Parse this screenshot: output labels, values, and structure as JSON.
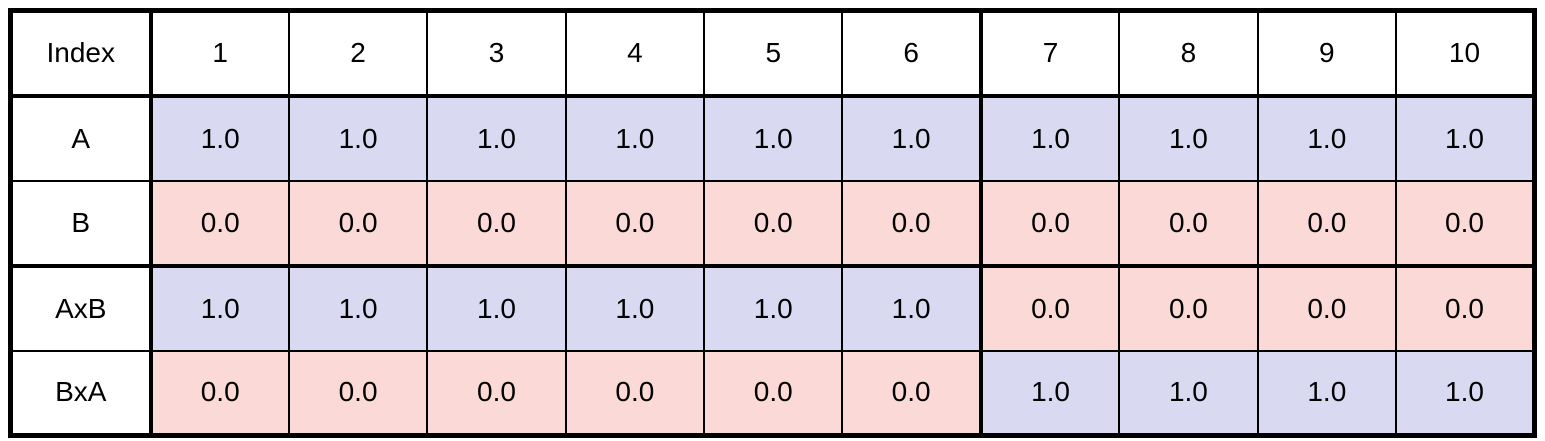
{
  "colors": {
    "page_background": "#ffffff",
    "border": "#000000",
    "text": "#000000",
    "header_background": "#ffffff",
    "label_background": "#ffffff",
    "value_backgrounds": {
      "1.0": "#d9d9f2",
      "0.0": "#fbd9d6"
    }
  },
  "table": {
    "corner_label": "Index",
    "column_headers": [
      "1",
      "2",
      "3",
      "4",
      "5",
      "6",
      "7",
      "8",
      "9",
      "10"
    ],
    "split_after_column": 6,
    "thick_separator_above_row": "AxB",
    "rows": [
      {
        "label": "A",
        "values": [
          "1.0",
          "1.0",
          "1.0",
          "1.0",
          "1.0",
          "1.0",
          "1.0",
          "1.0",
          "1.0",
          "1.0"
        ]
      },
      {
        "label": "B",
        "values": [
          "0.0",
          "0.0",
          "0.0",
          "0.0",
          "0.0",
          "0.0",
          "0.0",
          "0.0",
          "0.0",
          "0.0"
        ]
      },
      {
        "label": "AxB",
        "values": [
          "1.0",
          "1.0",
          "1.0",
          "1.0",
          "1.0",
          "1.0",
          "0.0",
          "0.0",
          "0.0",
          "0.0"
        ]
      },
      {
        "label": "BxA",
        "values": [
          "0.0",
          "0.0",
          "0.0",
          "0.0",
          "0.0",
          "0.0",
          "1.0",
          "1.0",
          "1.0",
          "1.0"
        ]
      }
    ]
  },
  "chart_data": {
    "type": "table",
    "title": "",
    "corner_label": "Index",
    "columns": [
      1,
      2,
      3,
      4,
      5,
      6,
      7,
      8,
      9,
      10
    ],
    "series": [
      {
        "name": "A",
        "values": [
          1.0,
          1.0,
          1.0,
          1.0,
          1.0,
          1.0,
          1.0,
          1.0,
          1.0,
          1.0
        ]
      },
      {
        "name": "B",
        "values": [
          0.0,
          0.0,
          0.0,
          0.0,
          0.0,
          0.0,
          0.0,
          0.0,
          0.0,
          0.0
        ]
      },
      {
        "name": "AxB",
        "values": [
          1.0,
          1.0,
          1.0,
          1.0,
          1.0,
          1.0,
          0.0,
          0.0,
          0.0,
          0.0
        ]
      },
      {
        "name": "BxA",
        "values": [
          0.0,
          0.0,
          0.0,
          0.0,
          0.0,
          0.0,
          1.0,
          1.0,
          1.0,
          1.0
        ]
      }
    ],
    "cell_color_coding": {
      "1.0": "lavender-blue",
      "0.0": "light-pink"
    },
    "group_split_after_column": 6
  }
}
